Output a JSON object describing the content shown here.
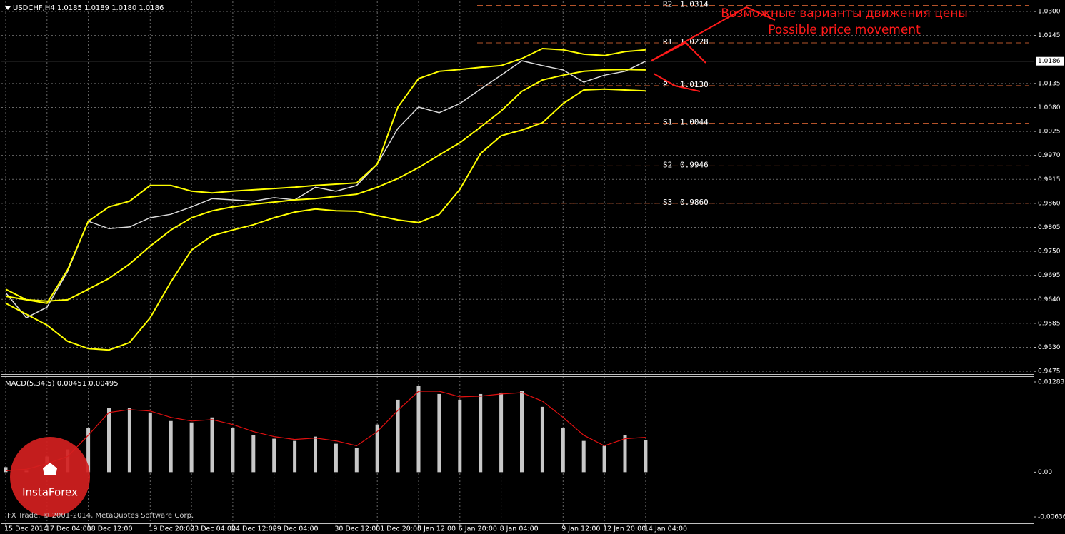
{
  "chart_data": [
    {
      "type": "line",
      "title": "USDCHF,H4  1.0185 1.0189 1.0180 1.0186",
      "categories": [
        "15 Dec 2014",
        null,
        "17 Dec 04:00",
        null,
        "18 Dec 12:00",
        null,
        null,
        "19 Dec 20:00",
        null,
        "23 Dec 04:00",
        null,
        "24 Dec 12:00",
        null,
        "29 Dec 04:00",
        null,
        null,
        "30 Dec 12:00",
        null,
        "31 Dec 20:00",
        null,
        "5 Jan 12:00",
        null,
        "6 Jan 20:00",
        null,
        "8 Jan 04:00",
        null,
        null,
        "9 Jan 12:00",
        null,
        "12 Jan 20:00",
        null,
        "14 Jan 04:00"
      ],
      "series": [
        {
          "color": "#dcdcdc",
          "values": [
            0.9655,
            0.9598,
            0.9622,
            0.9704,
            0.9819,
            0.9802,
            0.9806,
            0.9827,
            0.9835,
            0.9852,
            0.9871,
            0.9868,
            0.9865,
            0.9873,
            0.9868,
            0.9897,
            0.9888,
            0.9901,
            0.995,
            1.0032,
            1.0081,
            1.0068,
            1.0089,
            1.0122,
            1.0154,
            1.0187,
            1.0176,
            1.0166,
            1.0138,
            1.0154,
            1.0163,
            1.0186
          ]
        },
        {
          "color": "#ffff00",
          "values": [
            0.9663,
            0.9639,
            0.9631,
            0.9708,
            0.9819,
            0.9852,
            0.9865,
            0.9901,
            0.9901,
            0.9888,
            0.9884,
            0.9888,
            0.9891,
            0.9894,
            0.9897,
            0.9901,
            0.9904,
            0.9907,
            0.995,
            1.0081,
            1.0146,
            1.0163,
            1.0167,
            1.0172,
            1.0176,
            1.0192,
            1.0215,
            1.0212,
            1.0202,
            1.0199,
            1.0208,
            1.0212
          ]
        },
        {
          "color": "#ffff00",
          "values": [
            0.9647,
            0.9639,
            0.9636,
            0.9639,
            0.9663,
            0.9688,
            0.9721,
            0.9762,
            0.9799,
            0.9827,
            0.9843,
            0.9852,
            0.9858,
            0.9863,
            0.9868,
            0.9871,
            0.9876,
            0.9881,
            0.9897,
            0.9917,
            0.9942,
            0.9971,
            0.9999,
            1.0035,
            1.0072,
            1.0117,
            1.0143,
            1.0154,
            1.0163,
            1.0166,
            1.0167,
            1.0166
          ]
        },
        {
          "color": "#ffff00",
          "values": [
            0.9631,
            0.9606,
            0.9581,
            0.9544,
            0.9527,
            0.9524,
            0.9541,
            0.9598,
            0.968,
            0.9753,
            0.9786,
            0.9799,
            0.9811,
            0.9827,
            0.984,
            0.9847,
            0.9843,
            0.9842,
            0.9832,
            0.9822,
            0.9816,
            0.9835,
            0.9892,
            0.9974,
            1.0015,
            1.0028,
            1.0045,
            1.0089,
            1.012,
            1.0122,
            1.012,
            1.0118
          ]
        }
      ],
      "ylim": [
        0.9467,
        1.0323
      ],
      "yticks": [
        {
          "value": 1.03,
          "label": "1.0300"
        },
        {
          "value": 1.0245,
          "label": "1.0245"
        },
        {
          "value": 1.0135,
          "label": "1.0135"
        },
        {
          "value": 1.008,
          "label": "1.0080"
        },
        {
          "value": 1.0025,
          "label": "1.0025"
        },
        {
          "value": 0.997,
          "label": "0.9970"
        },
        {
          "value": 0.9915,
          "label": "0.9915"
        },
        {
          "value": 0.986,
          "label": "0.9860"
        },
        {
          "value": 0.9805,
          "label": "0.9805"
        },
        {
          "value": 0.975,
          "label": "0.9750"
        },
        {
          "value": 0.9695,
          "label": "0.9695"
        },
        {
          "value": 0.964,
          "label": "0.9640"
        },
        {
          "value": 0.9585,
          "label": "0.9585"
        },
        {
          "value": 0.953,
          "label": "0.9530"
        },
        {
          "value": 0.9475,
          "label": "0.9475"
        }
      ],
      "grid": true,
      "pivots": {
        "names": [
          "R2",
          "R1",
          "P",
          "S1",
          "S2",
          "S3"
        ],
        "values": [
          1.0314,
          1.0228,
          1.013,
          1.0044,
          0.9946,
          0.986
        ],
        "value_labels": [
          "1.0314",
          "1.0228",
          "1.0130",
          "1.0044",
          "0.9946",
          "0.9860"
        ],
        "color": "#b5532a"
      },
      "annotations": [
        "Возможные варианты движения цены",
        "Possible price movement"
      ],
      "annotation_color": "#ff1a1a"
    },
    {
      "type": "bar",
      "title": "MACD(5,34,5) 0.00451 0.00495",
      "series": [
        {
          "color": "#c8c8c8",
          "values": [
            0.00071,
            0.0002,
            0.00222,
            0.00323,
            0.00626,
            0.00909,
            0.00909,
            0.00848,
            0.00727,
            0.00707,
            0.00778,
            0.00626,
            0.00525,
            0.00475,
            0.00444,
            0.00505,
            0.00404,
            0.00343,
            0.00677,
            0.0103,
            0.01232,
            0.01111,
            0.0103,
            0.01111,
            0.01131,
            0.01151,
            0.00929,
            0.00626,
            0.00444,
            0.00374,
            0.00525,
            0.00451
          ]
        },
        {
          "type": "line",
          "color": "#e01010",
          "values": [
            0.0002,
            0.0004,
            0.00121,
            0.00222,
            0.00525,
            0.00848,
            0.00889,
            0.00869,
            0.00778,
            0.00727,
            0.00747,
            0.00677,
            0.00576,
            0.00505,
            0.00465,
            0.00485,
            0.00444,
            0.00374,
            0.00576,
            0.00879,
            0.01151,
            0.01151,
            0.01071,
            0.01081,
            0.01111,
            0.01131,
            0.0101,
            0.00778,
            0.00525,
            0.00374,
            0.00475,
            0.00495
          ]
        }
      ],
      "ylim": [
        -0.00727,
        0.01354
      ],
      "yticks": [
        0.01283,
        {
          "value": 0,
          "label": "0.00"
        },
        -0.00636
      ],
      "footer": "IFX Trade, © 2001-2014, MetaQuotes Software Corp.",
      "logo": "InstaForex"
    }
  ]
}
